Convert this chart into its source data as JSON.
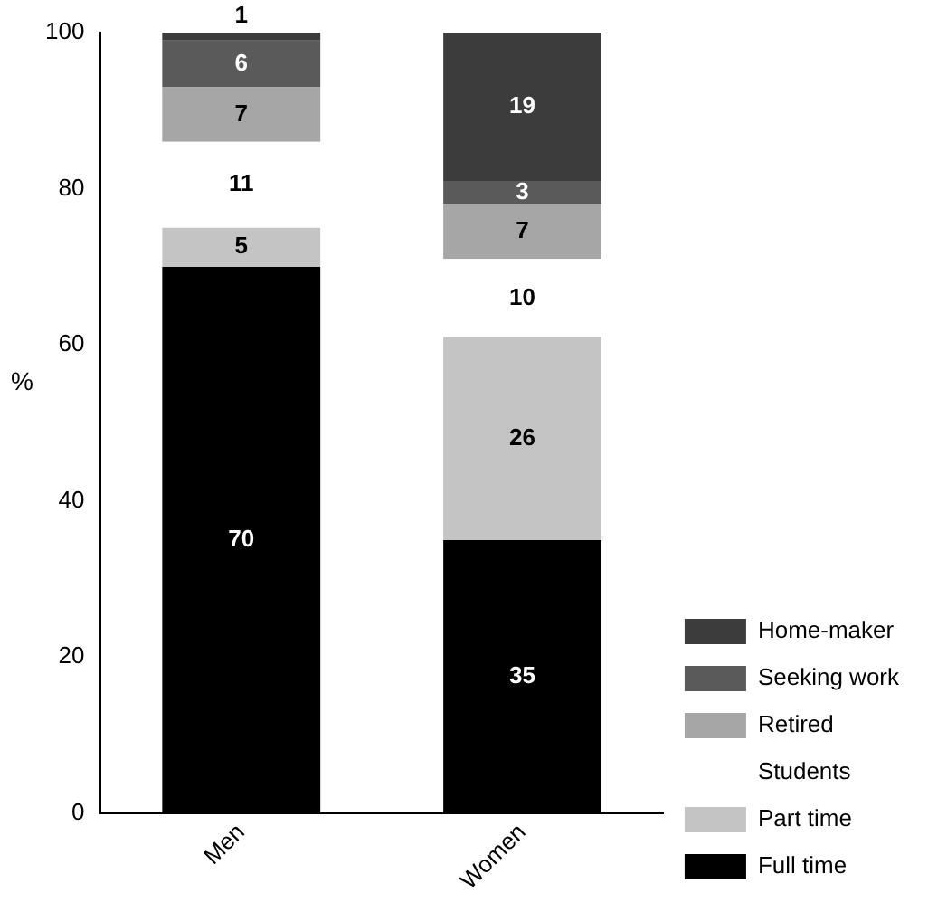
{
  "chart_data": {
    "type": "bar",
    "stacked": true,
    "ylabel": "%",
    "categories": [
      "Men",
      "Women"
    ],
    "series": [
      {
        "name": "Full time",
        "color": "#000000",
        "values": [
          70,
          35
        ]
      },
      {
        "name": "Part time",
        "color": "#c4c4c4",
        "values": [
          5,
          26
        ]
      },
      {
        "name": "Students",
        "color": "#ffffff",
        "values": [
          11,
          10
        ]
      },
      {
        "name": "Retired",
        "color": "#a6a6a6",
        "values": [
          7,
          7
        ]
      },
      {
        "name": "Seeking work",
        "color": "#5a5a5a",
        "values": [
          6,
          3
        ]
      },
      {
        "name": "Home-maker",
        "color": "#3c3c3c",
        "values": [
          1,
          19
        ]
      }
    ],
    "ylim": [
      0,
      100
    ],
    "yticks": [
      0,
      20,
      40,
      60,
      80,
      100
    ],
    "grid": false,
    "legend": "right",
    "data_labels": true
  }
}
